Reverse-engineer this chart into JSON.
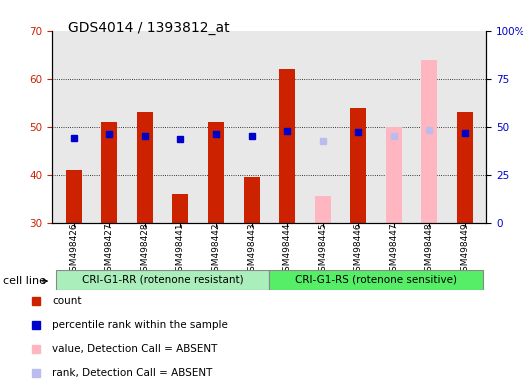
{
  "title": "GDS4014 / 1393812_at",
  "samples": [
    "GSM498426",
    "GSM498427",
    "GSM498428",
    "GSM498441",
    "GSM498442",
    "GSM498443",
    "GSM498444",
    "GSM498445",
    "GSM498446",
    "GSM498447",
    "GSM498448",
    "GSM498449"
  ],
  "count_values": [
    41,
    51,
    53,
    36,
    51,
    39.5,
    62,
    null,
    54,
    null,
    null,
    53
  ],
  "rank_values": [
    44,
    46,
    45,
    43.5,
    46,
    45,
    48,
    null,
    47.5,
    46,
    48.5,
    46.5
  ],
  "count_absent": [
    null,
    null,
    null,
    null,
    null,
    null,
    null,
    35.5,
    null,
    50,
    64,
    null
  ],
  "rank_absent": [
    null,
    null,
    null,
    null,
    null,
    null,
    null,
    42.5,
    null,
    45,
    48.5,
    null
  ],
  "group_labels": [
    "CRI-G1-RR (rotenone resistant)",
    "CRI-G1-RS (rotenone sensitive)"
  ],
  "group_split": 6,
  "ylim_left": [
    30,
    70
  ],
  "ylim_right": [
    0,
    100
  ],
  "yticks_left": [
    30,
    40,
    50,
    60,
    70
  ],
  "yticks_right": [
    0,
    25,
    50,
    75,
    100
  ],
  "color_count": "#CC2200",
  "color_rank": "#0000CC",
  "color_count_absent": "#FFB6C1",
  "color_rank_absent": "#BBBBEE",
  "bar_width": 0.45,
  "cell_line_label": "cell line",
  "group1_color": "#AAEEBB",
  "group2_color": "#55EE66",
  "plot_bg": "#E8E8E8",
  "legend": [
    [
      "count",
      "#CC2200"
    ],
    [
      "percentile rank within the sample",
      "#0000CC"
    ],
    [
      "value, Detection Call = ABSENT",
      "#FFB6C1"
    ],
    [
      "rank, Detection Call = ABSENT",
      "#BBBBEE"
    ]
  ]
}
